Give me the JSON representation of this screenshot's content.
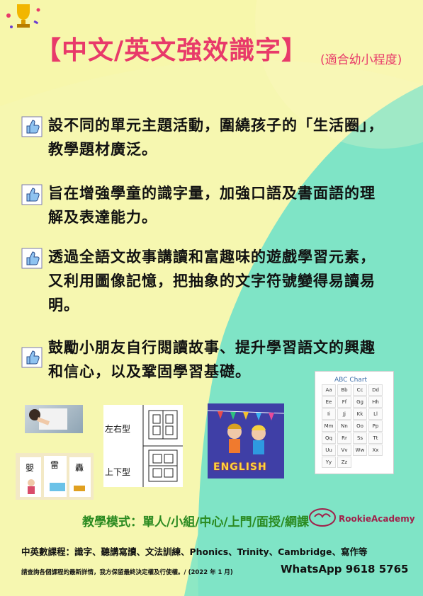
{
  "title": "【中文/英文強效識字】",
  "subtitle": "(適合幼小程度)",
  "bullets": [
    "設不同的單元主題活動，圍繞孩子的「生活圈」，教學題材廣泛。",
    "旨在增強學童的識字量，加強口語及書面語的理解及表達能力。",
    "透過全語文故事講讀和富趣味的遊戲學習元素，又利用圖像記憶，把抽象的文字符號變得易讀易明。",
    "鼓勵小朋友自行閱讀故事、提升學習語文的興趣和信心，以及鞏固學習基礎。"
  ],
  "images": {
    "structure_left_right": "左右型",
    "structure_top_bottom": "上下型",
    "chars": [
      "嬰",
      "雷",
      "轟"
    ],
    "english_label": "ENGLISH",
    "abc_title": "ABC Chart",
    "abc_cells": [
      "Aa",
      "Bb",
      "Cc",
      "Dd",
      "Ee",
      "Ff",
      "Gg",
      "Hh",
      "Ii",
      "Jj",
      "Kk",
      "Ll",
      "Mm",
      "Nn",
      "Oo",
      "Pp",
      "Qq",
      "Rr",
      "Ss",
      "Tt",
      "Uu",
      "Vv",
      "Ww",
      "Xx",
      "Yy",
      "Zz"
    ]
  },
  "mode": {
    "label": "教學模式：",
    "value": "單人/小組/中心/上門/面授/網課"
  },
  "brand": "RookieAcademy",
  "courses": "中英數課程：識字、聽講寫讀、文法訓練、Phonics、Trinity、Cambridge、寫作等",
  "disclaimer": "請查詢各個課程的最新詳情，我方保留最終決定權及行使權。/ (2022 年 1 月)",
  "whatsapp": "WhatsApp 9618 5765",
  "colors": {
    "background_yellow": "#f4f7a8",
    "mint": "#7fe6c9",
    "pink_title": "#e83a6a",
    "green_mode": "#2a8a20"
  }
}
